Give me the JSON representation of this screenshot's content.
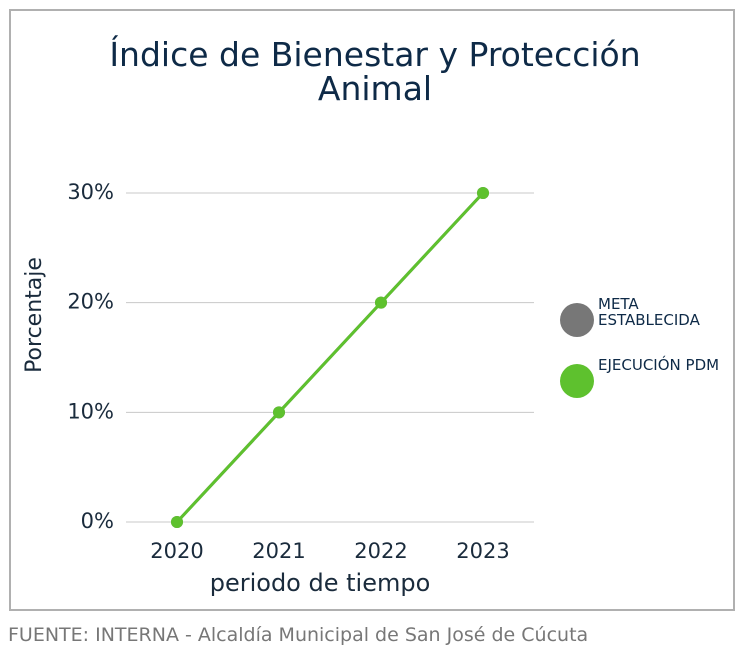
{
  "chart_data": {
    "type": "line",
    "title": "Índice de Bienestar y Protección Animal",
    "x_label": "periodo de tiempo",
    "y_label": "Porcentaje",
    "source": "FUENTE: INTERNA - Alcaldía Municipal de San José de Cúcuta",
    "categories": [
      "2020",
      "2021",
      "2022",
      "2023"
    ],
    "series": [
      {
        "name": "META ESTABLECIDA",
        "color": "#777777",
        "values": [
          0,
          10,
          20,
          30
        ]
      },
      {
        "name": "EJECUCIÓN PDM",
        "color": "#5ec12e",
        "values": [
          0,
          10,
          20,
          30
        ]
      }
    ],
    "ylim": [
      0,
      30
    ],
    "yticks": [
      {
        "value": 0,
        "label": "0%"
      },
      {
        "value": 10,
        "label": "10%"
      },
      {
        "value": 20,
        "label": "20%"
      },
      {
        "value": 30,
        "label": "30%"
      }
    ],
    "grid": true
  }
}
